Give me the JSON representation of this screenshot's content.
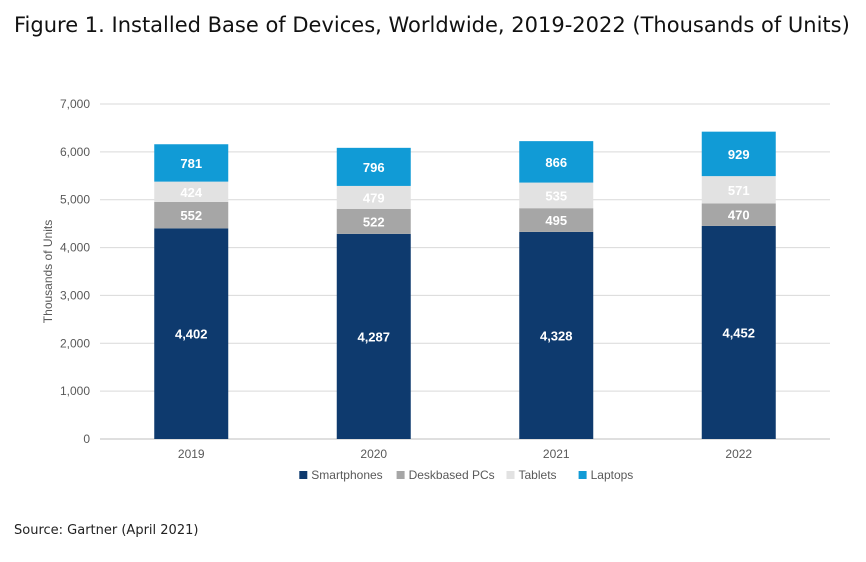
{
  "title": "Figure 1. Installed Base of Devices, Worldwide, 2019-2022 (Thousands of Units)",
  "source": "Source: Gartner (April 2021)",
  "chart_data": {
    "type": "bar",
    "stacked": true,
    "title": "Figure 1. Installed Base of Devices, Worldwide, 2019-2022 (Thousands of Units)",
    "xlabel": "",
    "ylabel": "Thousands of Units",
    "ylim": [
      0,
      7000
    ],
    "yticks": [
      0,
      1000,
      2000,
      3000,
      4000,
      5000,
      6000,
      7000
    ],
    "ytick_labels": [
      "0",
      "1,000",
      "2,000",
      "3,000",
      "4,000",
      "5,000",
      "6,000",
      "7,000"
    ],
    "grid": true,
    "legend_position": "bottom",
    "categories": [
      "2019",
      "2020",
      "2021",
      "2022"
    ],
    "series": [
      {
        "name": "Smartphones",
        "color": "#0e3a6e",
        "label_color": "#ffffff",
        "values": [
          4402,
          4287,
          4328,
          4452
        ],
        "labels": [
          "4,402",
          "4,287",
          "4,328",
          "4,452"
        ]
      },
      {
        "name": "Deskbased PCs",
        "color": "#a6a6a6",
        "label_color": "#ffffff",
        "values": [
          552,
          522,
          495,
          470
        ],
        "labels": [
          "552",
          "522",
          "495",
          "470"
        ]
      },
      {
        "name": "Tablets",
        "color": "#e2e2e2",
        "label_color": "#ffffff",
        "values": [
          424,
          479,
          535,
          571
        ],
        "labels": [
          "424",
          "479",
          "535",
          "571"
        ]
      },
      {
        "name": "Laptops",
        "color": "#119bd6",
        "label_color": "#ffffff",
        "values": [
          781,
          796,
          866,
          929
        ],
        "labels": [
          "781",
          "796",
          "866",
          "929"
        ]
      }
    ]
  }
}
